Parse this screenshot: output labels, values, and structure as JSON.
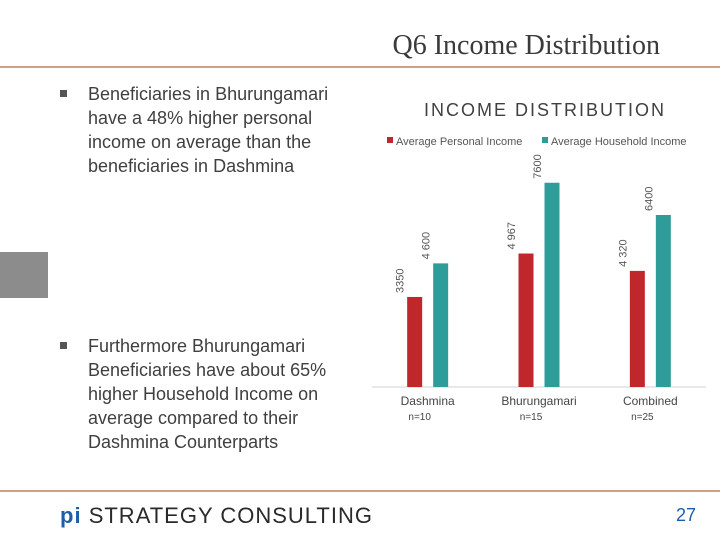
{
  "slide": {
    "title": "Q6 Income Distribution",
    "page_number": "27",
    "brand": {
      "prefix": "pi",
      "name": "STRATEGY CONSULTING"
    },
    "bullets": [
      "Beneficiaries in Bhurungamari have a 48% higher personal income on average than the beneficiaries in Dashmina",
      "Furthermore Bhurungamari Beneficiaries have about 65% higher Household Income on average compared to their Dashmina Counterparts"
    ]
  },
  "colors": {
    "personal": "#c0272d",
    "household": "#2e9c98",
    "title_rule": "#c9a28a",
    "brand_pi": "#1f5da8"
  },
  "chart_data": {
    "type": "bar",
    "title": "INCOME DISTRIBUTION",
    "categories": [
      "Dashmina",
      "Bhurungamari",
      "Combined"
    ],
    "subcategories": [
      "n=10",
      "n=15",
      "n=25"
    ],
    "series": [
      {
        "name": "Average Personal Income",
        "values": [
          3350,
          4967,
          4320
        ],
        "labels": [
          "3350",
          "4 967",
          "4 320"
        ]
      },
      {
        "name": "Average Household Income",
        "values": [
          4600,
          7600,
          6400
        ],
        "labels": [
          "4 600",
          "7600",
          "6400"
        ]
      }
    ],
    "ylim": [
      0,
      8000
    ],
    "legend": "top",
    "grid": false
  }
}
